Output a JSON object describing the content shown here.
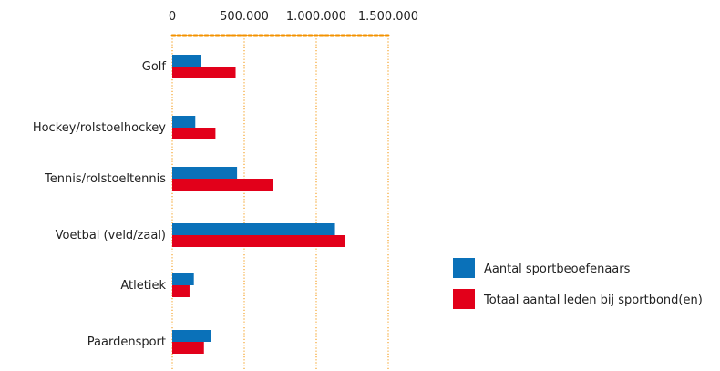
{
  "chart_data": {
    "type": "bar",
    "orientation": "horizontal",
    "categories": [
      "Golf",
      "Hockey/rolstoelhockey",
      "Tennis/rolstoeltennis",
      "Voetbal (veld/zaal)",
      "Atletiek",
      "Paardensport"
    ],
    "series": [
      {
        "name": "Aantal sportbeoefenaars",
        "color": "#0a71b9",
        "values": [
          200000,
          160000,
          450000,
          1130000,
          150000,
          270000
        ]
      },
      {
        "name": "Totaal aantal leden bij sportbond(en)",
        "color": "#e2001a",
        "values": [
          440000,
          300000,
          700000,
          1200000,
          120000,
          220000
        ]
      }
    ],
    "xlim": [
      0,
      1500000
    ],
    "x_ticks": [
      0,
      500000,
      1000000,
      1500000
    ],
    "x_tick_labels": [
      "0",
      "500.000",
      "1.000.000",
      "1.500.000"
    ],
    "axis_position": "top",
    "grid": "vertical-dotted",
    "grid_color": "#f39200",
    "legend_position": "right"
  }
}
